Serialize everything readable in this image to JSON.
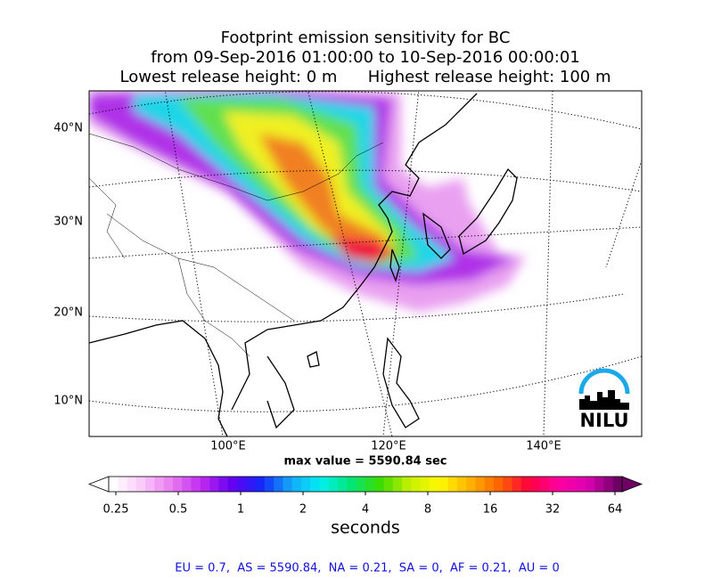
{
  "header": {
    "title_lines": [
      "Footprint emission sensitivity for BC",
      "from 09-Sep-2016 01:00:00 to 10-Sep-2016 00:00:01",
      "Lowest release height: 0 m      Highest release height: 100 m"
    ]
  },
  "map": {
    "lat_labels": [
      "40°N",
      "30°N",
      "20°N",
      "10°N"
    ],
    "lon_labels": [
      "100°E",
      "120°E",
      "140°E"
    ],
    "logo": "NILU",
    "max_value": "max value = 5590.84 sec"
  },
  "colorbar": {
    "tick_labels": [
      "0.25",
      "0.5",
      "1",
      "2",
      "4",
      "8",
      "16",
      "32",
      "64"
    ],
    "label": "seconds"
  },
  "footer": "EU = 0.7,  AS = 5590.84,  NA = 0.21,  SA = 0,  AF = 0.21,  AU = 0"
}
